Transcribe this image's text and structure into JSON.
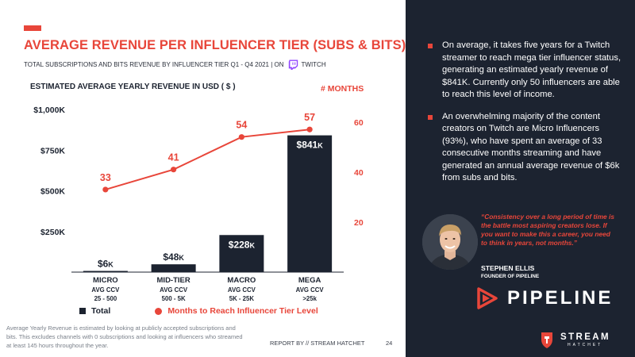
{
  "header": {
    "title": "AVERAGE REVENUE PER INFLUENCER TIER (SUBS & BITS)",
    "subtitle_prefix": "TOTAL SUBSCRIPTIONS AND BITS REVENUE BY INFLUENCER TIER Q1 - Q4 2021 | ON",
    "subtitle_suffix": "TWITCH",
    "chart_heading": "ESTIMATED AVERAGE YEARLY REVENUE IN USD ( $ )",
    "months_heading": "# MONTHS"
  },
  "chart_data": {
    "type": "bar",
    "title": "ESTIMATED AVERAGE YEARLY REVENUE IN USD ( $ )",
    "categories": [
      "MICRO",
      "MID-TIER",
      "MACRO",
      "MEGA"
    ],
    "category_sub1": [
      "AVG CCV",
      "AVG CCV",
      "AVG CCV",
      "AVG CCV"
    ],
    "category_sub2": [
      "25 - 500",
      "500 - 5K",
      "5K - 25K",
      ">25k"
    ],
    "series": [
      {
        "name": "Total",
        "type": "bar",
        "axis": "left",
        "values": [
          6,
          48,
          228,
          841
        ],
        "labels": [
          "$6K",
          "$48K",
          "$228K",
          "$841K"
        ],
        "color": "#1c2330"
      },
      {
        "name": "Months to Reach Influencer Tier Level",
        "type": "line",
        "axis": "right",
        "values": [
          33,
          41,
          54,
          57
        ],
        "labels": [
          "33",
          "41",
          "54",
          "57"
        ],
        "color": "#e8463a"
      }
    ],
    "left_axis": {
      "ylim": [
        0,
        1000
      ],
      "ticks": [
        250,
        500,
        750,
        1000
      ],
      "tick_labels": [
        "$250K",
        "$500K",
        "$750K",
        "$1,000K"
      ]
    },
    "right_axis": {
      "ylim": [
        0,
        65
      ],
      "ticks": [
        20,
        40,
        60
      ],
      "tick_labels": [
        "20",
        "40",
        "60"
      ],
      "color": "#e8463a"
    },
    "grid": false,
    "legend_position": "bottom"
  },
  "legend": {
    "total_label": "Total",
    "months_label": "Months to Reach Influencer Tier Level"
  },
  "footer": {
    "footnote": "Average Yearly Revenue is estimated by looking at publicly accepted subscriptions and bits. This excludes channels with 0 subscriptions and looking at influencers who streamed at least 145 hours throughout the year.",
    "report_by": "REPORT BY // STREAM HATCHET",
    "page_number": "24"
  },
  "sidebar": {
    "bullets": [
      {
        "text": "On average, it takes five years for a Twitch streamer to reach mega tier influencer status, generating an estimated yearly revenue of $841K. Currently only 50 influencers are able to reach this level of income."
      },
      {
        "text": "An overwhelming majority of the content creators on Twitch are Micro Influencers (93%), who have spent an average of 33 consecutive months streaming and have generated an annual average revenue of $6k from subs and bits."
      }
    ],
    "quote": "“Consistency over a long period of time is the battle most aspiring creators lose. If you want to make this a career, you need to think in years, not months.”",
    "quote_name": "STEPHEN ELLIS",
    "quote_role": "FOUNDER OF PIPELINE",
    "pipeline_word": "PIPELINE",
    "brand_word1": "STREAM",
    "brand_word2": "HATCHET"
  },
  "colors": {
    "accent": "#e8463a",
    "dark": "#1c2330",
    "twitch": "#9146ff"
  },
  "icons": {
    "twitch": "twitch-logo-icon",
    "pipeline": "pipeline-logo-icon",
    "stream_hatchet": "stream-hatchet-logo-icon"
  }
}
